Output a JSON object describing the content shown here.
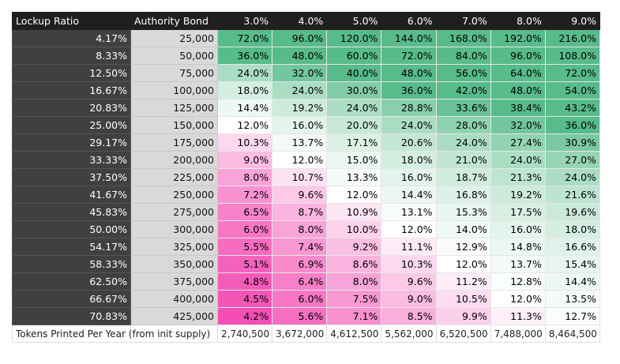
{
  "table": {
    "header": [
      "Lockup Ratio",
      "Authority Bond",
      "3.0%",
      "4.0%",
      "5.0%",
      "6.0%",
      "7.0%",
      "8.0%",
      "9.0%"
    ],
    "rows": [
      [
        "4.17%",
        "25,000",
        "72.0%",
        "96.0%",
        "120.0%",
        "144.0%",
        "168.0%",
        "192.0%",
        "216.0%"
      ],
      [
        "8.33%",
        "50,000",
        "36.0%",
        "48.0%",
        "60.0%",
        "72.0%",
        "84.0%",
        "96.0%",
        "108.0%"
      ],
      [
        "12.50%",
        "75,000",
        "24.0%",
        "32.0%",
        "40.0%",
        "48.0%",
        "56.0%",
        "64.0%",
        "72.0%"
      ],
      [
        "16.67%",
        "100,000",
        "18.0%",
        "24.0%",
        "30.0%",
        "36.0%",
        "42.0%",
        "48.0%",
        "54.0%"
      ],
      [
        "20.83%",
        "125,000",
        "14.4%",
        "19.2%",
        "24.0%",
        "28.8%",
        "33.6%",
        "38.4%",
        "43.2%"
      ],
      [
        "25.00%",
        "150,000",
        "12.0%",
        "16.0%",
        "20.0%",
        "24.0%",
        "28.0%",
        "32.0%",
        "36.0%"
      ],
      [
        "29.17%",
        "175,000",
        "10.3%",
        "13.7%",
        "17.1%",
        "20.6%",
        "24.0%",
        "27.4%",
        "30.9%"
      ],
      [
        "33.33%",
        "200,000",
        "9.0%",
        "12.0%",
        "15.0%",
        "18.0%",
        "21.0%",
        "24.0%",
        "27.0%"
      ],
      [
        "37.50%",
        "225,000",
        "8.0%",
        "10.7%",
        "13.3%",
        "16.0%",
        "18.7%",
        "21.3%",
        "24.0%"
      ],
      [
        "41.67%",
        "250,000",
        "7.2%",
        "9.6%",
        "12.0%",
        "14.4%",
        "16.8%",
        "19.2%",
        "21.6%"
      ],
      [
        "45.83%",
        "275,000",
        "6.5%",
        "8.7%",
        "10.9%",
        "13.1%",
        "15.3%",
        "17.5%",
        "19.6%"
      ],
      [
        "50.00%",
        "300,000",
        "6.0%",
        "8.0%",
        "10.0%",
        "12.0%",
        "14.0%",
        "16.0%",
        "18.0%"
      ],
      [
        "54.17%",
        "325,000",
        "5.5%",
        "7.4%",
        "9.2%",
        "11.1%",
        "12.9%",
        "14.8%",
        "16.6%"
      ],
      [
        "58.33%",
        "350,000",
        "5.1%",
        "6.9%",
        "8.6%",
        "10.3%",
        "12.0%",
        "13.7%",
        "15.4%"
      ],
      [
        "62.50%",
        "375,000",
        "4.8%",
        "6.4%",
        "8.0%",
        "9.6%",
        "11.2%",
        "12.8%",
        "14.4%"
      ],
      [
        "66.67%",
        "400,000",
        "4.5%",
        "6.0%",
        "7.5%",
        "9.0%",
        "10.5%",
        "12.0%",
        "13.5%"
      ],
      [
        "70.83%",
        "425,000",
        "4.2%",
        "5.6%",
        "7.1%",
        "8.5%",
        "9.9%",
        "11.3%",
        "12.7%"
      ]
    ],
    "footer": {
      "label": "Tokens Printed Per Year (from init supply)",
      "values": [
        "2,740,500",
        "3,672,000",
        "4,612,500",
        "5,562,000",
        "6,520,500",
        "7,488,000",
        "8,464,500"
      ]
    }
  }
}
